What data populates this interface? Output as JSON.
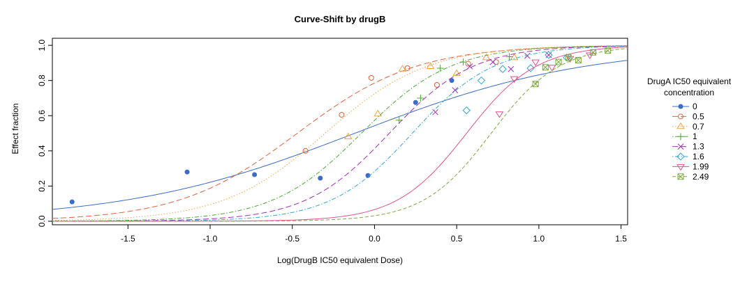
{
  "chart_data": {
    "type": "line",
    "title": "Curve-Shift by drugB",
    "xlabel": "Log(DrugB IC50 equivalent Dose)",
    "ylabel": "Effect fraction",
    "xlim": [
      -1.96,
      1.54
    ],
    "ylim": [
      -0.02,
      1.04
    ],
    "x_ticks": [
      -1.5,
      -1.0,
      -0.5,
      0.0,
      0.5,
      1.0,
      1.5
    ],
    "x_tick_labels": [
      "-1.5",
      "-1.0",
      "-0.5",
      "0.0",
      "0.5",
      "1.0",
      "1.5"
    ],
    "y_ticks": [
      0.0,
      0.2,
      0.4,
      0.6,
      0.8,
      1.0
    ],
    "y_tick_labels": [
      "0.0",
      "0.2",
      "0.4",
      "0.6",
      "0.8",
      "1.0"
    ],
    "grid": false,
    "legend": {
      "title": [
        "DrugA IC50 equivalent",
        "concentration"
      ],
      "position": "right"
    },
    "series": [
      {
        "name": "0",
        "color": "#3b6cc6",
        "marker": "dot",
        "dash": "solid",
        "curve": {
          "x50": -0.12,
          "slope": 0.62
        },
        "points": [
          [
            -1.84,
            0.11
          ],
          [
            -1.14,
            0.28
          ],
          [
            -0.73,
            0.265
          ],
          [
            -0.33,
            0.245
          ],
          [
            -0.04,
            0.26
          ],
          [
            0.25,
            0.675
          ],
          [
            0.47,
            0.8
          ]
        ]
      },
      {
        "name": "0.5",
        "color": "#e2623b",
        "marker": "circle",
        "dash": "longdash",
        "curve": {
          "x50": -0.47,
          "slope": 1.2
        },
        "points": [
          [
            -0.42,
            0.4
          ],
          [
            -0.2,
            0.605
          ],
          [
            -0.02,
            0.815
          ],
          [
            0.2,
            0.87
          ],
          [
            0.38,
            0.775
          ],
          [
            0.57,
            0.895
          ],
          [
            0.74,
            0.905
          ]
        ]
      },
      {
        "name": "0.7",
        "color": "#f5a340",
        "marker": "triangle",
        "dash": "dotted",
        "curve": {
          "x50": -0.3,
          "slope": 1.4
        },
        "points": [
          [
            -0.16,
            0.48
          ],
          [
            0.02,
            0.61
          ],
          [
            0.17,
            0.865
          ],
          [
            0.34,
            0.88
          ],
          [
            0.5,
            0.84
          ],
          [
            0.68,
            0.93
          ],
          [
            0.85,
            0.93
          ]
        ]
      },
      {
        "name": "1",
        "color": "#4aa830",
        "marker": "plus",
        "dash": "dotdash",
        "curve": {
          "x50": -0.08,
          "slope": 1.6
        },
        "points": [
          [
            0.15,
            0.575
          ],
          [
            0.28,
            0.7
          ],
          [
            0.4,
            0.87
          ],
          [
            0.54,
            0.905
          ],
          [
            0.82,
            0.935
          ]
        ]
      },
      {
        "name": "1.3",
        "color": "#a12fb3",
        "marker": "cross",
        "dash": "longdash",
        "curve": {
          "x50": 0.09,
          "slope": 1.7
        },
        "points": [
          [
            0.37,
            0.62
          ],
          [
            0.49,
            0.745
          ],
          [
            0.58,
            0.88
          ],
          [
            0.72,
            0.905
          ],
          [
            0.83,
            0.865
          ],
          [
            0.93,
            0.94
          ],
          [
            1.06,
            0.945
          ]
        ]
      },
      {
        "name": "1.6",
        "color": "#2fa6d4",
        "marker": "diamond",
        "dash": "dotdash",
        "curve": {
          "x50": 0.23,
          "slope": 1.75
        },
        "points": [
          [
            0.56,
            0.63
          ],
          [
            0.65,
            0.8
          ],
          [
            0.78,
            0.865
          ],
          [
            0.95,
            0.87
          ],
          [
            1.06,
            0.945
          ],
          [
            1.17,
            0.93
          ]
        ]
      },
      {
        "name": "1.99",
        "color": "#e8508a",
        "marker": "downtriangle",
        "dash": "solid",
        "curve": {
          "x50": 0.56,
          "slope": 2.05
        },
        "points": [
          [
            0.76,
            0.61
          ],
          [
            0.85,
            0.81
          ],
          [
            0.98,
            0.905
          ],
          [
            1.08,
            0.875
          ],
          [
            1.19,
            0.925
          ],
          [
            1.31,
            0.945
          ]
        ]
      },
      {
        "name": "2.49",
        "color": "#7da83a",
        "marker": "squarecross",
        "dash": "dashed",
        "curve": {
          "x50": 0.71,
          "slope": 2.1
        },
        "points": [
          [
            0.98,
            0.78
          ],
          [
            1.04,
            0.875
          ],
          [
            1.12,
            0.905
          ],
          [
            1.18,
            0.93
          ],
          [
            1.24,
            0.915
          ],
          [
            1.33,
            0.96
          ],
          [
            1.42,
            0.97
          ]
        ]
      }
    ]
  }
}
